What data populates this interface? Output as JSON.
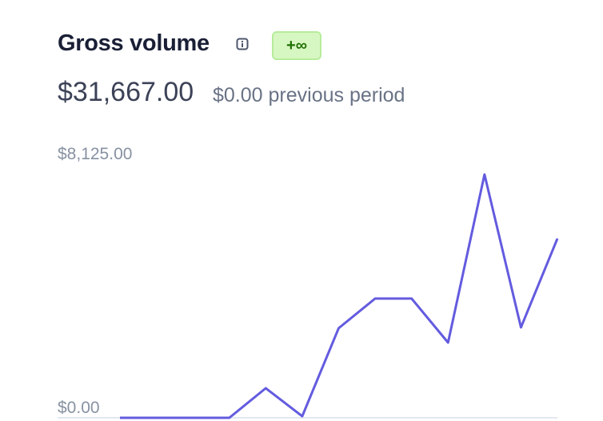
{
  "chart_data": {
    "type": "line",
    "title": "Gross volume",
    "badge": "+∞",
    "total": "$31,667.00",
    "comparison": "$0.00 previous period",
    "categories": [
      null,
      null,
      null,
      null,
      null,
      null,
      null,
      null,
      null,
      null,
      null,
      null,
      null
    ],
    "series": [
      {
        "color": "#635bdf",
        "values": [
          0,
          0,
          0,
          0,
          948,
          50,
          2871,
          3819,
          3819,
          2409,
          7792,
          2896,
          5741
        ]
      }
    ],
    "ylim": [
      0,
      8125
    ],
    "yticks": [
      {
        "value": 0,
        "label": "$0.00"
      },
      {
        "value": 8125,
        "label": "$8,125.00"
      }
    ]
  }
}
